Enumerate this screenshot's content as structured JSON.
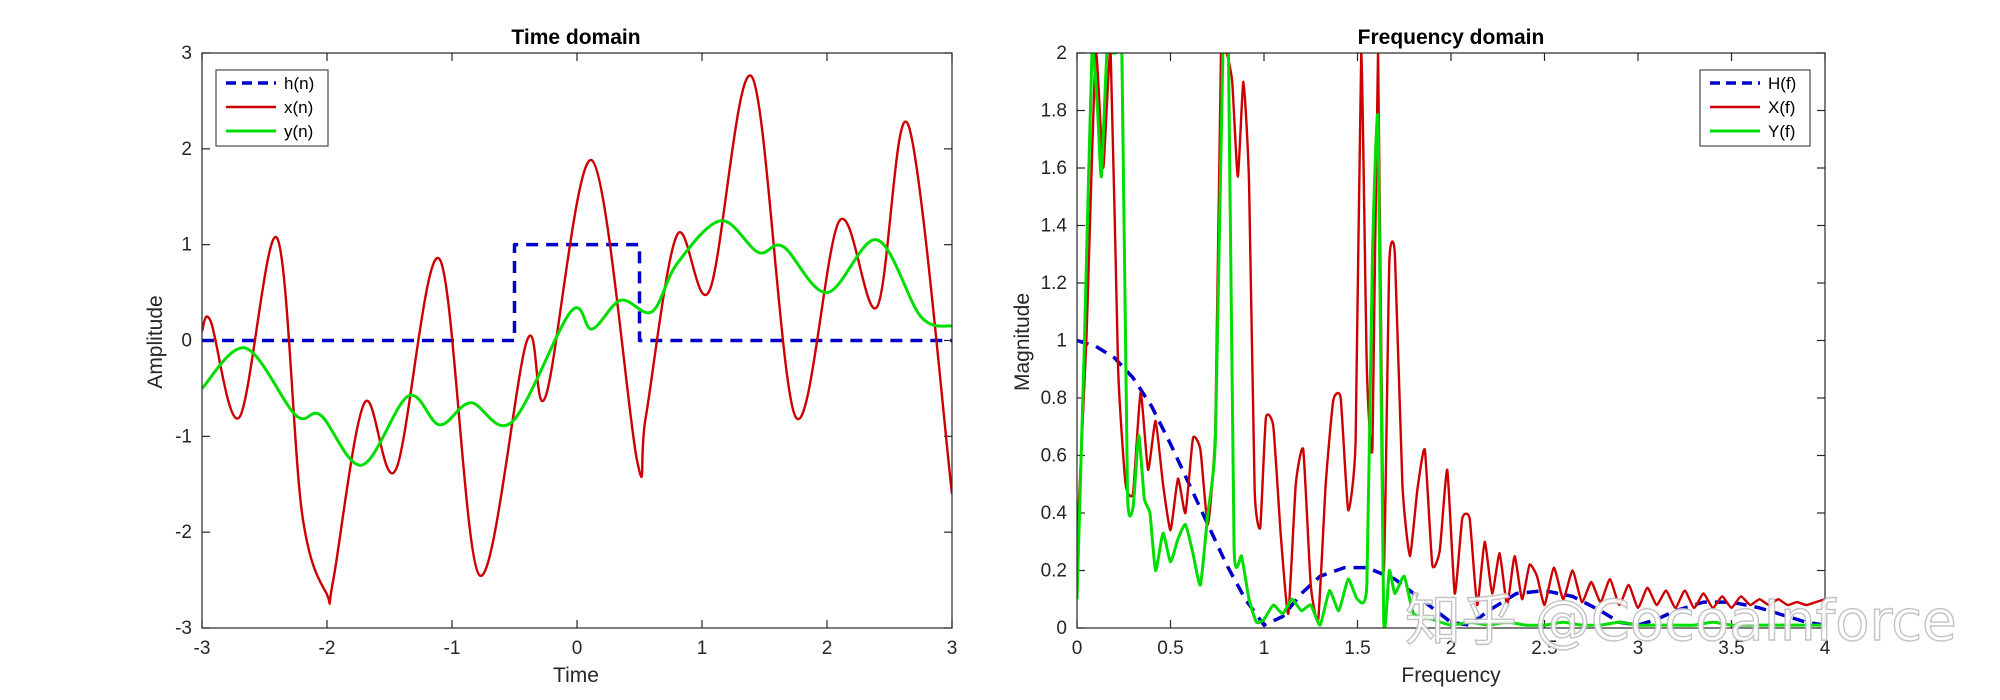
{
  "watermark": "知乎 @CocoaInforce",
  "chart_data": [
    {
      "type": "line",
      "title": "Time domain",
      "xlabel": "Time",
      "ylabel": "Amplitude",
      "xlim": [
        -3,
        3
      ],
      "ylim": [
        -3,
        3
      ],
      "xticks": [
        -3,
        -2,
        -1,
        0,
        1,
        2,
        3
      ],
      "yticks": [
        -3,
        -2,
        -1,
        0,
        1,
        2,
        3
      ],
      "xtick_labels": [
        "-3",
        "-2",
        "-1",
        "0",
        "1",
        "2",
        "3"
      ],
      "ytick_labels": [
        "-3",
        "-2",
        "-1",
        "0",
        "1",
        "2",
        "3"
      ],
      "grid": false,
      "legend_position": "top-left",
      "series": [
        {
          "name": "h(n)",
          "color": "#0000cc",
          "style": "dashed",
          "x": [
            -3,
            -0.5,
            -0.5,
            0.5,
            0.5,
            3
          ],
          "y": [
            0,
            0,
            1,
            1,
            0,
            0
          ]
        },
        {
          "name": "x(n)",
          "color": "#cc0000",
          "style": "solid",
          "x": [
            -3,
            -2.93,
            -2.7,
            -2.4,
            -2.2,
            -2.0,
            -1.95,
            -1.7,
            -1.45,
            -1.1,
            -0.78,
            -0.4,
            -0.25,
            0.12,
            0.48,
            0.55,
            0.8,
            1.06,
            1.4,
            1.75,
            2.1,
            2.4,
            2.65,
            3
          ],
          "y": [
            0.1,
            0.2,
            -0.8,
            1.07,
            -1.8,
            -2.65,
            -2.5,
            -0.65,
            -1.35,
            0.85,
            -2.45,
            0,
            -0.58,
            1.88,
            -1.25,
            -0.8,
            1.1,
            0.52,
            2.75,
            -0.8,
            1.25,
            0.35,
            2.25,
            -1.6
          ]
        },
        {
          "name": "y(n)",
          "color": "#00dd00",
          "style": "solid",
          "x": [
            -3,
            -2.65,
            -2.25,
            -2.05,
            -1.72,
            -1.35,
            -1.1,
            -0.85,
            -0.52,
            -0.05,
            0.12,
            0.35,
            0.6,
            0.8,
            1.15,
            1.45,
            1.65,
            2.0,
            2.4,
            2.75,
            3
          ],
          "y": [
            -0.5,
            -0.08,
            -0.78,
            -0.78,
            -1.3,
            -0.58,
            -0.88,
            -0.65,
            -0.85,
            0.3,
            0.12,
            0.42,
            0.3,
            0.8,
            1.25,
            0.92,
            0.98,
            0.5,
            1.05,
            0.25,
            0.15
          ]
        }
      ]
    },
    {
      "type": "line",
      "title": "Frequency domain",
      "xlabel": "Frequency",
      "ylabel": "Magnitude",
      "xlim": [
        0,
        4
      ],
      "ylim": [
        0,
        2
      ],
      "xticks": [
        0,
        0.5,
        1,
        1.5,
        2,
        2.5,
        3,
        3.5,
        4
      ],
      "yticks": [
        0,
        0.2,
        0.4,
        0.6,
        0.8,
        1,
        1.2,
        1.4,
        1.6,
        1.8,
        2
      ],
      "xtick_labels": [
        "0",
        "0.5",
        "1",
        "1.5",
        "2",
        "2.5",
        "3",
        "3.5",
        "4"
      ],
      "ytick_labels": [
        "0",
        "0.2",
        "0.4",
        "0.6",
        "0.8",
        "1",
        "1.2",
        "1.4",
        "1.6",
        "1.8",
        "2"
      ],
      "grid": false,
      "legend_position": "top-right",
      "series": [
        {
          "name": "H(f)",
          "color": "#0000cc",
          "style": "dashed",
          "x": [
            0,
            0.1,
            0.2,
            0.3,
            0.4,
            0.5,
            0.6,
            0.7,
            0.8,
            0.9,
            1.0,
            1.1,
            1.2,
            1.3,
            1.43,
            1.55,
            1.7,
            1.8,
            1.9,
            2.0,
            2.1,
            2.2,
            2.35,
            2.5,
            2.65,
            2.8,
            2.9,
            3.0,
            3.1,
            3.2,
            3.35,
            3.5,
            3.65,
            3.8,
            3.9,
            4.0
          ],
          "y": [
            1.0,
            0.98,
            0.94,
            0.87,
            0.77,
            0.64,
            0.5,
            0.36,
            0.22,
            0.1,
            0.01,
            0.04,
            0.12,
            0.18,
            0.21,
            0.21,
            0.17,
            0.12,
            0.07,
            0.02,
            0.01,
            0.06,
            0.12,
            0.13,
            0.11,
            0.06,
            0.02,
            0.01,
            0.03,
            0.06,
            0.09,
            0.09,
            0.07,
            0.04,
            0.02,
            0.01
          ]
        },
        {
          "name": "X(f)",
          "color": "#cc0000",
          "style": "solid",
          "x": [
            0,
            0.05,
            0.1,
            0.14,
            0.18,
            0.22,
            0.26,
            0.3,
            0.34,
            0.38,
            0.42,
            0.46,
            0.5,
            0.54,
            0.58,
            0.62,
            0.66,
            0.7,
            0.74,
            0.77,
            0.8,
            0.83,
            0.86,
            0.89,
            0.92,
            0.95,
            0.98,
            1.01,
            1.05,
            1.09,
            1.13,
            1.17,
            1.21,
            1.25,
            1.29,
            1.33,
            1.37,
            1.41,
            1.45,
            1.49,
            1.52,
            1.55,
            1.58,
            1.61,
            1.64,
            1.67,
            1.7,
            1.74,
            1.78,
            1.82,
            1.86,
            1.9,
            1.94,
            1.98,
            2.02,
            2.06,
            2.1,
            2.14,
            2.18,
            2.22,
            2.26,
            2.3,
            2.34,
            2.38,
            2.42,
            2.46,
            2.5,
            2.55,
            2.6,
            2.65,
            2.7,
            2.75,
            2.8,
            2.85,
            2.9,
            2.95,
            3.0,
            3.05,
            3.1,
            3.15,
            3.2,
            3.25,
            3.3,
            3.35,
            3.4,
            3.45,
            3.5,
            3.55,
            3.6,
            3.65,
            3.7,
            3.75,
            3.8,
            3.85,
            3.9,
            3.95,
            4.0
          ],
          "y": [
            0.3,
            1.0,
            2.0,
            1.6,
            2.0,
            0.9,
            0.5,
            0.47,
            0.82,
            0.55,
            0.72,
            0.5,
            0.34,
            0.52,
            0.4,
            0.66,
            0.62,
            0.36,
            0.7,
            2.0,
            2.0,
            1.9,
            1.57,
            1.9,
            1.55,
            0.48,
            0.35,
            0.73,
            0.7,
            0.32,
            0.05,
            0.5,
            0.62,
            0.15,
            0.03,
            0.5,
            0.79,
            0.8,
            0.41,
            0.65,
            2.0,
            0.9,
            0.63,
            2.0,
            0.2,
            1.27,
            1.3,
            0.5,
            0.25,
            0.48,
            0.62,
            0.22,
            0.27,
            0.55,
            0.12,
            0.38,
            0.38,
            0.08,
            0.3,
            0.12,
            0.26,
            0.08,
            0.25,
            0.1,
            0.22,
            0.18,
            0.08,
            0.21,
            0.1,
            0.2,
            0.09,
            0.16,
            0.09,
            0.17,
            0.08,
            0.15,
            0.07,
            0.14,
            0.08,
            0.13,
            0.07,
            0.13,
            0.07,
            0.12,
            0.07,
            0.11,
            0.07,
            0.11,
            0.08,
            0.1,
            0.08,
            0.1,
            0.08,
            0.09,
            0.08,
            0.09,
            0.1
          ]
        },
        {
          "name": "Y(f)",
          "color": "#00dd00",
          "style": "solid",
          "x": [
            0,
            0.04,
            0.08,
            0.11,
            0.13,
            0.16,
            0.19,
            0.21,
            0.24,
            0.27,
            0.3,
            0.33,
            0.36,
            0.39,
            0.42,
            0.46,
            0.5,
            0.54,
            0.58,
            0.62,
            0.66,
            0.7,
            0.74,
            0.78,
            0.81,
            0.84,
            0.88,
            0.92,
            0.96,
            1.0,
            1.05,
            1.1,
            1.15,
            1.2,
            1.25,
            1.3,
            1.35,
            1.4,
            1.45,
            1.5,
            1.55,
            1.58,
            1.61,
            1.64,
            1.67,
            1.7,
            1.75,
            1.8,
            1.9,
            2.0,
            2.1,
            2.2,
            2.3,
            2.4,
            2.5,
            2.6,
            2.7,
            2.8,
            2.9,
            3.0,
            3.1,
            3.2,
            3.3,
            3.4,
            3.5,
            3.6,
            3.7,
            3.8,
            3.9,
            4.0
          ],
          "y": [
            0.1,
            1.0,
            2.0,
            1.8,
            1.57,
            2.0,
            2.0,
            2.0,
            2.0,
            0.47,
            0.42,
            0.67,
            0.45,
            0.4,
            0.2,
            0.33,
            0.23,
            0.31,
            0.36,
            0.26,
            0.15,
            0.4,
            0.65,
            2.0,
            2.0,
            0.28,
            0.25,
            0.1,
            0.02,
            0.03,
            0.08,
            0.05,
            0.1,
            0.06,
            0.08,
            0.01,
            0.13,
            0.06,
            0.17,
            0.1,
            0.15,
            1.3,
            1.77,
            0.03,
            0.2,
            0.12,
            0.18,
            0.05,
            0.03,
            0.01,
            0.02,
            0.01,
            0.02,
            0.01,
            0.01,
            0.02,
            0.01,
            0.01,
            0.02,
            0.01,
            0.01,
            0.01,
            0.01,
            0.02,
            0.01,
            0.01,
            0.01,
            0.01,
            0.01,
            0.01
          ]
        }
      ]
    }
  ]
}
